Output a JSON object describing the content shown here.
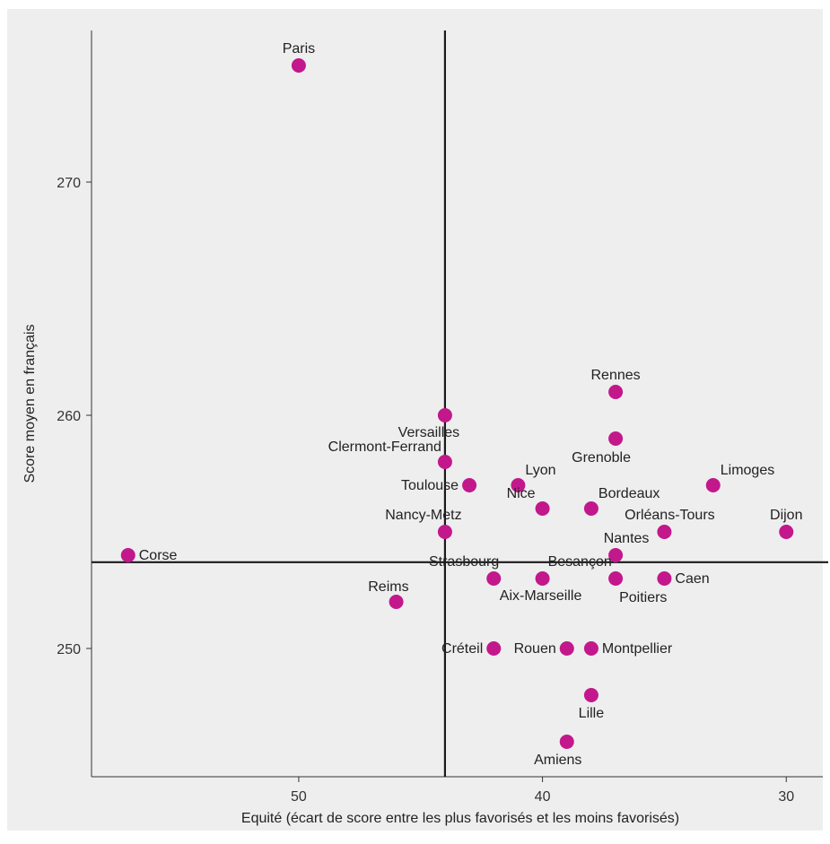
{
  "chart_data": {
    "type": "scatter",
    "title": "",
    "xlabel": "Equité (écart de score entre les plus favorisés et les moins favorisés)",
    "ylabel": "Score moyen en français",
    "x_reversed": true,
    "xlim": [
      58.5,
      28.5
    ],
    "ylim": [
      244.5,
      276.5
    ],
    "xticks": [
      50,
      40,
      30
    ],
    "yticks": [
      250,
      260,
      270
    ],
    "reference_lines": {
      "x": 44,
      "y": 253.7
    },
    "point_color": "#c2188b",
    "line_color": "#1a1a1a",
    "background_color": "#eeeeee",
    "points": [
      {
        "label": "Paris",
        "x": 50,
        "y": 275,
        "anchor": "above"
      },
      {
        "label": "Rennes",
        "x": 37,
        "y": 261,
        "anchor": "above"
      },
      {
        "label": "Versailles",
        "x": 44,
        "y": 260,
        "anchor": "below"
      },
      {
        "label": "Grenoble",
        "x": 37,
        "y": 259,
        "anchor": "below"
      },
      {
        "label": "Clermont-Ferrand",
        "x": 44,
        "y": 258,
        "anchor": "above-left"
      },
      {
        "label": "Toulouse",
        "x": 43,
        "y": 257,
        "anchor": "left"
      },
      {
        "label": "Lyon",
        "x": 41,
        "y": 257,
        "anchor": "above-right"
      },
      {
        "label": "Limoges",
        "x": 33,
        "y": 257,
        "anchor": "above-right"
      },
      {
        "label": "Nice",
        "x": 40,
        "y": 256,
        "anchor": "above-left"
      },
      {
        "label": "Bordeaux",
        "x": 38,
        "y": 256,
        "anchor": "above-right"
      },
      {
        "label": "Nancy-Metz",
        "x": 44,
        "y": 255,
        "anchor": "above"
      },
      {
        "label": "Orléans-Tours",
        "x": 35,
        "y": 255,
        "anchor": "above"
      },
      {
        "label": "Dijon",
        "x": 30,
        "y": 255,
        "anchor": "above"
      },
      {
        "label": "Corse",
        "x": 57,
        "y": 254,
        "anchor": "right"
      },
      {
        "label": "Nantes",
        "x": 37,
        "y": 254,
        "anchor": "above-right"
      },
      {
        "label": "Strasbourg",
        "x": 42,
        "y": 253,
        "anchor": "above-left"
      },
      {
        "label": "Besançon",
        "x": 40,
        "y": 253,
        "anchor": "above-right"
      },
      {
        "label": "Aix-Marseille",
        "x": 40,
        "y": 253,
        "anchor": "below"
      },
      {
        "label": "Poitiers",
        "x": 37,
        "y": 253,
        "anchor": "below-right"
      },
      {
        "label": "Caen",
        "x": 35,
        "y": 253,
        "anchor": "right"
      },
      {
        "label": "Reims",
        "x": 46,
        "y": 252,
        "anchor": "above-left"
      },
      {
        "label": "Créteil",
        "x": 42,
        "y": 250,
        "anchor": "left"
      },
      {
        "label": "Rouen",
        "x": 39,
        "y": 250,
        "anchor": "left"
      },
      {
        "label": "Montpellier",
        "x": 38,
        "y": 250,
        "anchor": "right"
      },
      {
        "label": "Lille",
        "x": 38,
        "y": 248,
        "anchor": "below"
      },
      {
        "label": "Amiens",
        "x": 39,
        "y": 246,
        "anchor": "below"
      }
    ]
  }
}
